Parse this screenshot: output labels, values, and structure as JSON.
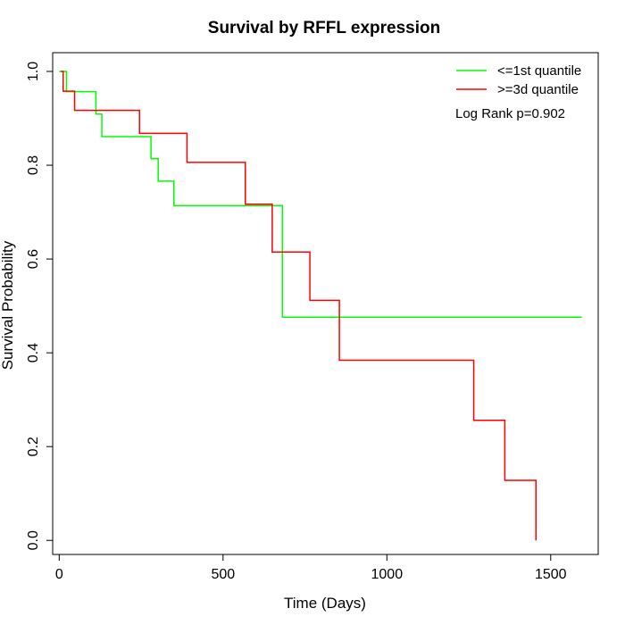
{
  "chart_data": {
    "type": "line",
    "title": "Survival by RFFL expression",
    "xlabel": "Time (Days)",
    "ylabel": "Survival Probability",
    "xlim": [
      -20,
      1645
    ],
    "ylim": [
      -0.03,
      1.04
    ],
    "x_ticks": [
      0,
      500,
      1000,
      1500
    ],
    "y_ticks": [
      0.0,
      0.2,
      0.4,
      0.6,
      0.8,
      1.0
    ],
    "x_tick_labels": [
      "0",
      "500",
      "1000",
      "1500"
    ],
    "y_tick_labels": [
      "0.0",
      "0.2",
      "0.4",
      "0.6",
      "0.8",
      "1.0"
    ],
    "grid": false,
    "legend_position": "top-right",
    "annotation": "Log Rank p=0.902",
    "series": [
      {
        "name": "<=1st quantile",
        "color": "#00ff00",
        "step": "post",
        "x": [
          0,
          22,
          112,
          130,
          280,
          302,
          350,
          681,
          1595
        ],
        "y": [
          1.0,
          0.957,
          0.909,
          0.861,
          0.814,
          0.766,
          0.714,
          0.476,
          0.476
        ]
      },
      {
        "name": ">=3d quantile",
        "color": "#ff0000",
        "step": "post",
        "x": [
          5,
          12,
          47,
          245,
          390,
          568,
          650,
          765,
          855,
          1265,
          1360,
          1455,
          1455
        ],
        "y": [
          1.0,
          0.958,
          0.917,
          0.868,
          0.806,
          0.717,
          0.615,
          0.512,
          0.384,
          0.256,
          0.128,
          0.0,
          0.0
        ]
      }
    ]
  }
}
